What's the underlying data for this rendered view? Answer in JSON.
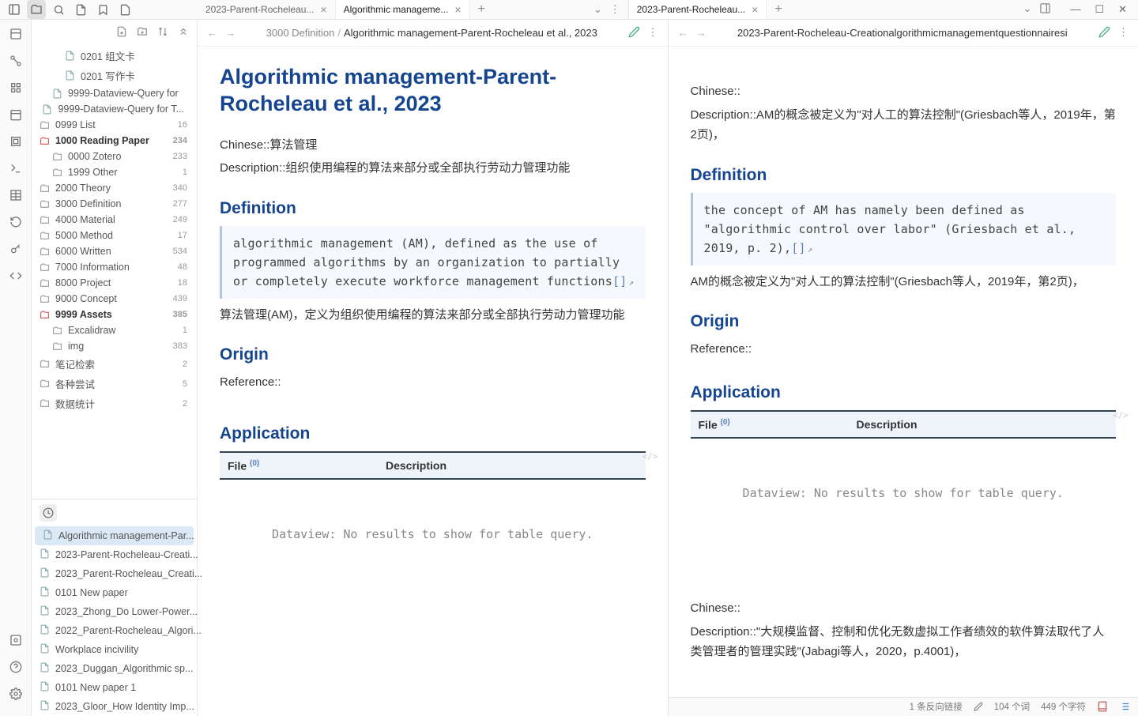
{
  "colors": {
    "heading": "#16458f",
    "border": "#e5e5e5",
    "quote_bg": "#f5f8fc",
    "quote_border": "#b0c4de",
    "table_header_bg": "#eef4fa",
    "table_border": "#345",
    "active_recent_bg": "#dbe8f5"
  },
  "tabs": {
    "left_group": [
      {
        "title": "2023-Parent-Rocheleau...",
        "active": false
      },
      {
        "title": "Algorithmic manageme...",
        "active": true
      }
    ],
    "right_group": [
      {
        "title": "2023-Parent-Rocheleau...",
        "active": true
      }
    ]
  },
  "sidebar": {
    "tree": [
      {
        "indent": 2,
        "icon": "file",
        "label": "0201 组文卡",
        "count": ""
      },
      {
        "indent": 2,
        "icon": "file",
        "label": "0201 写作卡",
        "count": ""
      },
      {
        "indent": 1,
        "icon": "file",
        "label": "9999-Dataview-Query for",
        "count": ""
      },
      {
        "indent": 1,
        "icon": "file",
        "label": "9999-Dataview-Query for T...",
        "count": ""
      },
      {
        "indent": 0,
        "icon": "folder",
        "label": "0999 List",
        "count": "16"
      },
      {
        "indent": 0,
        "icon": "folder-open",
        "label": "1000 Reading Paper",
        "count": "234",
        "bold": true
      },
      {
        "indent": 1,
        "icon": "folder",
        "label": "0000 Zotero",
        "count": "233"
      },
      {
        "indent": 1,
        "icon": "folder",
        "label": "1999 Other",
        "count": "1"
      },
      {
        "indent": 0,
        "icon": "folder",
        "label": "2000 Theory",
        "count": "340"
      },
      {
        "indent": 0,
        "icon": "folder",
        "label": "3000 Definition",
        "count": "277"
      },
      {
        "indent": 0,
        "icon": "folder",
        "label": "4000 Material",
        "count": "249"
      },
      {
        "indent": 0,
        "icon": "folder",
        "label": "5000 Method",
        "count": "17"
      },
      {
        "indent": 0,
        "icon": "folder",
        "label": "6000 Written",
        "count": "534"
      },
      {
        "indent": 0,
        "icon": "folder",
        "label": "7000 Information",
        "count": "48"
      },
      {
        "indent": 0,
        "icon": "folder",
        "label": "8000 Project",
        "count": "18"
      },
      {
        "indent": 0,
        "icon": "folder",
        "label": "9000 Concept",
        "count": "439"
      },
      {
        "indent": 0,
        "icon": "folder-open",
        "label": "9999 Assets",
        "count": "385",
        "bold": true
      },
      {
        "indent": 1,
        "icon": "folder",
        "label": "Excalidraw",
        "count": "1"
      },
      {
        "indent": 1,
        "icon": "folder",
        "label": "img",
        "count": "383"
      },
      {
        "indent": 0,
        "icon": "folder",
        "label": "笔记检索",
        "count": "2"
      },
      {
        "indent": 0,
        "icon": "folder",
        "label": "各种尝试",
        "count": "5"
      },
      {
        "indent": 0,
        "icon": "folder",
        "label": "数据统计",
        "count": "2"
      }
    ],
    "recent": [
      {
        "label": "Algorithmic management-Par...",
        "active": true
      },
      {
        "label": "2023-Parent-Rocheleau-Creati..."
      },
      {
        "label": "2023_Parent-Rocheleau_Creati..."
      },
      {
        "label": "0101 New paper"
      },
      {
        "label": "2023_Zhong_Do Lower-Power..."
      },
      {
        "label": "2022_Parent-Rocheleau_Algori..."
      },
      {
        "label": "Workplace incivility"
      },
      {
        "label": "2023_Duggan_Algorithmic sp..."
      },
      {
        "label": "0101 New paper 1"
      },
      {
        "label": "2023_Gloor_How Identity Imp..."
      }
    ]
  },
  "left_pane": {
    "breadcrumb": {
      "parent": "3000 Definition",
      "current": "Algorithmic management-Parent-Rocheleau et al., 2023"
    },
    "title": "Algorithmic management-Parent-Rocheleau et al., 2023",
    "chinese_line": "Chinese::算法管理",
    "desc_line": "Description::组织使用编程的算法来部分或全部执行劳动力管理功能",
    "definition_heading": "Definition",
    "definition_quote": "algorithmic management (AM), defined as the use of programmed algorithms by an organization to partially or completely execute workforce management functions",
    "definition_link": "[]",
    "definition_para": "算法管理(AM)，定义为组织使用编程的算法来部分或全部执行劳动力管理功能",
    "origin_heading": "Origin",
    "reference_line": "Reference::",
    "application_heading": "Application",
    "table": {
      "col_file": "File",
      "col_file_sup": "(0)",
      "col_desc": "Description",
      "empty": "Dataview: No results to show for table query."
    }
  },
  "right_pane": {
    "breadcrumb": {
      "current": "2023-Parent-Rocheleau-Creationalgorithmicmanagementquestionnairesi"
    },
    "chinese_line": "Chinese::",
    "desc_line": "Description::AM的概念被定义为\"对人工的算法控制\"(Griesbach等人，2019年，第2页)，",
    "definition_heading": "Definition",
    "definition_quote": "the concept of AM has namely been defined as \"algorithmic control over labor\" (Griesbach et al., 2019, p. 2),",
    "definition_link": "[]",
    "definition_para": "AM的概念被定义为\"对人工的算法控制\"(Griesbach等人，2019年，第2页)，",
    "origin_heading": "Origin",
    "reference_line": "Reference::",
    "application_heading": "Application",
    "table": {
      "col_file": "File",
      "col_file_sup": "(0)",
      "col_desc": "Description",
      "empty": "Dataview: No results to show for table query."
    },
    "chinese_line2": "Chinese::",
    "desc_line2": "Description::\"大规模监督、控制和优化无数虚拟工作者绩效的软件算法取代了人类管理者的管理实践\"(Jabagi等人，2020，p.4001)，"
  },
  "statusbar": {
    "backlinks": "1 条反向链接",
    "words": "104 个词",
    "chars": "449 个字符"
  }
}
